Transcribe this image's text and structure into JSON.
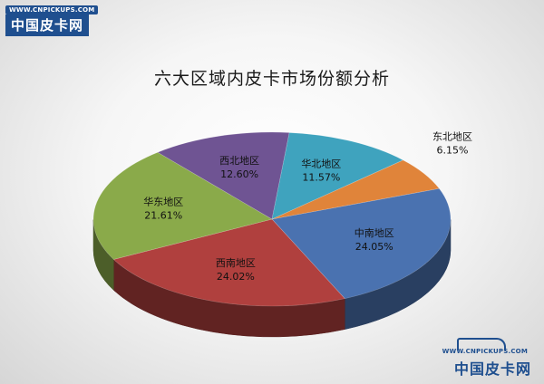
{
  "brand": {
    "url": "WWW.CNPICKUPS.COM",
    "name": "中国皮卡网"
  },
  "chart_data": {
    "type": "pie",
    "title": "六大区域内皮卡市场份额分析",
    "slices": [
      {
        "label": "中南地区",
        "value": 24.05,
        "value_label": "24.05%",
        "color": "#4a72b0"
      },
      {
        "label": "西南地区",
        "value": 24.02,
        "value_label": "24.02%",
        "color": "#b0403e"
      },
      {
        "label": "华东地区",
        "value": 21.61,
        "value_label": "21.61%",
        "color": "#8aaa4a"
      },
      {
        "label": "西北地区",
        "value": 12.6,
        "value_label": "12.60%",
        "color": "#6f5493"
      },
      {
        "label": "华北地区",
        "value": 11.57,
        "value_label": "11.57%",
        "color": "#3fa3be"
      },
      {
        "label": "东北地区",
        "value": 6.15,
        "value_label": "6.15%",
        "color": "#e0843a"
      }
    ],
    "start_clockwise_from": "east",
    "style": "3d"
  }
}
